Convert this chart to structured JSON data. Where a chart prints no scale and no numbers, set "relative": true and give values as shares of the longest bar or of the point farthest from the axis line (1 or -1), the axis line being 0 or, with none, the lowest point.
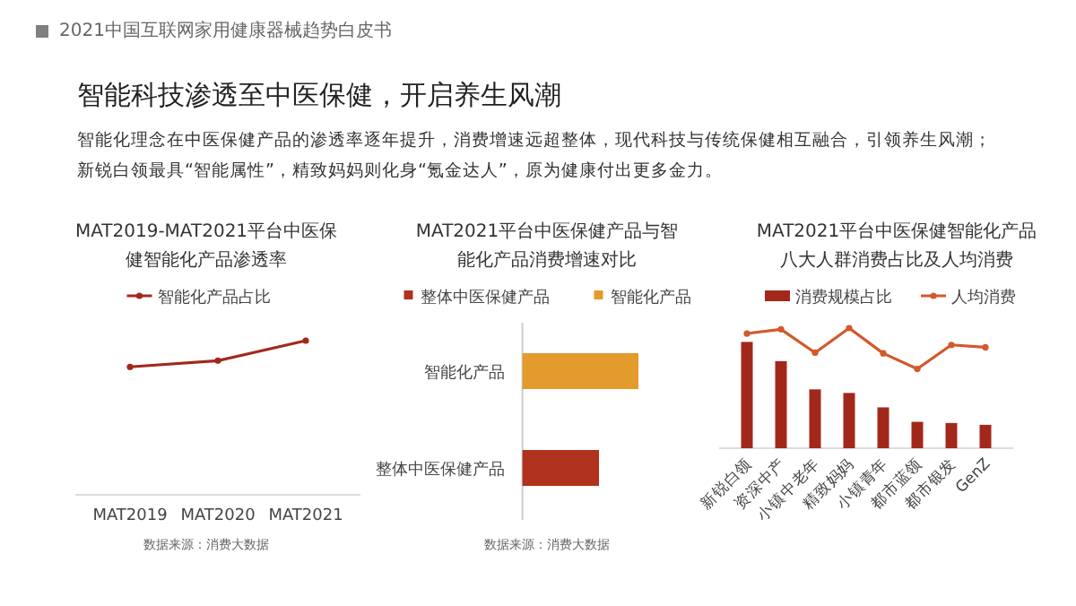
{
  "chart_data": [
    {
      "type": "other",
      "title": "智能科技渗透至中医保健，开启养生风潮",
      "subtitle": "智能化理念在中医保健产品的渗透率逐年提升，消费增速远超整体，现代科技与传统保健相互融合，引领养生风潮；新锐白领最具“智能属性”，精致妈妈则化身“氪金达人”，原为健康付出更多金力。",
      "annotations": [
        "2021中国互联网家用健康器械趋势白皮书"
      ]
    },
    {
      "type": "line",
      "title": "MAT2019-MAT2021平台中医保健智能化产品渗透率",
      "categories": [
        "MAT2019",
        "MAT2020",
        "MAT2021"
      ],
      "relative": true,
      "legend": "top",
      "marker": "circle",
      "series": [
        {
          "name": "智能化产品占比",
          "color": "#a3281c",
          "values": [
            0.83,
            0.87,
            1
          ]
        }
      ],
      "annotations": [
        "数据来源：消费大数据"
      ]
    },
    {
      "type": "bar",
      "orientation": "horizontal",
      "title": "MAT2021平台中医保健产品与智能化产品消费增速对比",
      "categories": [
        "智能化产品",
        "整体中医保健产品"
      ],
      "relative": true,
      "legend": "top",
      "series": [
        {
          "name": "整体中医保健产品",
          "color": "#b0321c",
          "values": [
            null,
            0.66
          ]
        },
        {
          "name": "智能化产品",
          "color": "#e59a2c",
          "values": [
            1,
            null
          ]
        }
      ],
      "annotations": [
        "数据来源：消费大数据"
      ]
    },
    {
      "type": "bar",
      "title": "MAT2021平台中医保健智能化产品八大人群消费占比及人均消费",
      "categories": [
        "新锐白领",
        "资深中产",
        "小镇中老年",
        "精致妈妈",
        "小镇青年",
        "都市蓝领",
        "都市银发",
        "GenZ"
      ],
      "relative": true,
      "legend": "top",
      "marker": "circle",
      "series": [
        {
          "name": "消费规模占比",
          "color": "#a3281c",
          "values": [
            0.885,
            0.725,
            0.49,
            0.46,
            0.34,
            0.22,
            0.21,
            0.195
          ]
        },
        {
          "name": "人均消费",
          "type": "line",
          "color": "#d2592a",
          "values": [
            0.955,
            0.99,
            0.795,
            1,
            0.79,
            0.66,
            0.86,
            0.84
          ]
        }
      ]
    }
  ]
}
